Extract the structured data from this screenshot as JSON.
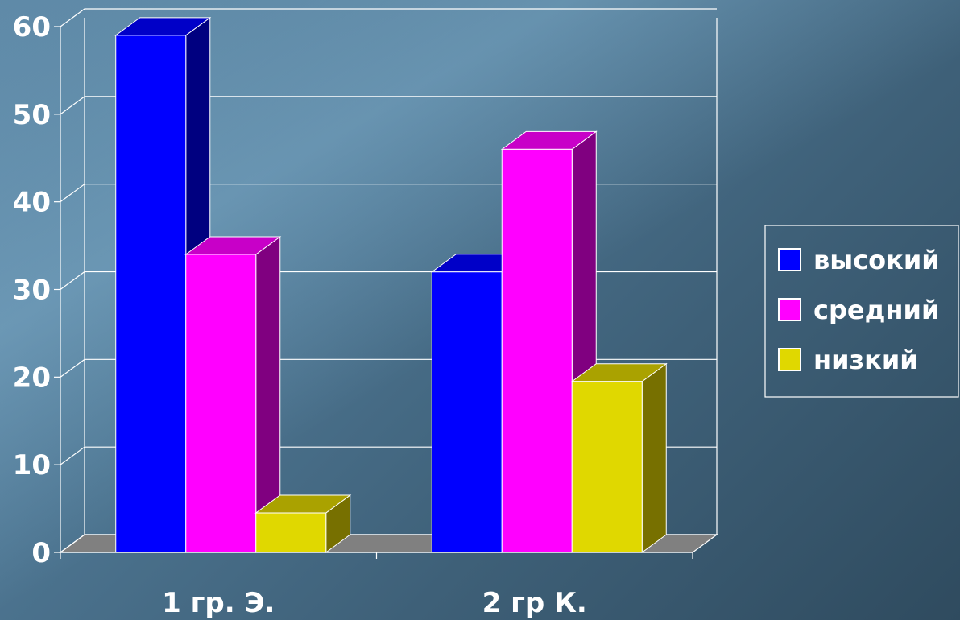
{
  "chart_data": {
    "type": "bar",
    "style": "3d-clustered",
    "categories": [
      "1 гр. Э.",
      "2 гр К."
    ],
    "series": [
      {
        "name": "высокий",
        "values": [
          59,
          32
        ],
        "color": "#0000ff",
        "side_color": "#000080",
        "top_color": "#0000c8"
      },
      {
        "name": "средний",
        "values": [
          34,
          46
        ],
        "color": "#ff00ff",
        "side_color": "#800080",
        "top_color": "#c800c8"
      },
      {
        "name": "низкий",
        "values": [
          4.5,
          19.5
        ],
        "color": "#e0d800",
        "side_color": "#777000",
        "top_color": "#aaa200"
      }
    ],
    "y_ticks": [
      "0",
      "10",
      "20",
      "30",
      "40",
      "50",
      "60"
    ],
    "ylim": [
      0,
      60
    ],
    "grid": true,
    "legend_position": "right"
  }
}
